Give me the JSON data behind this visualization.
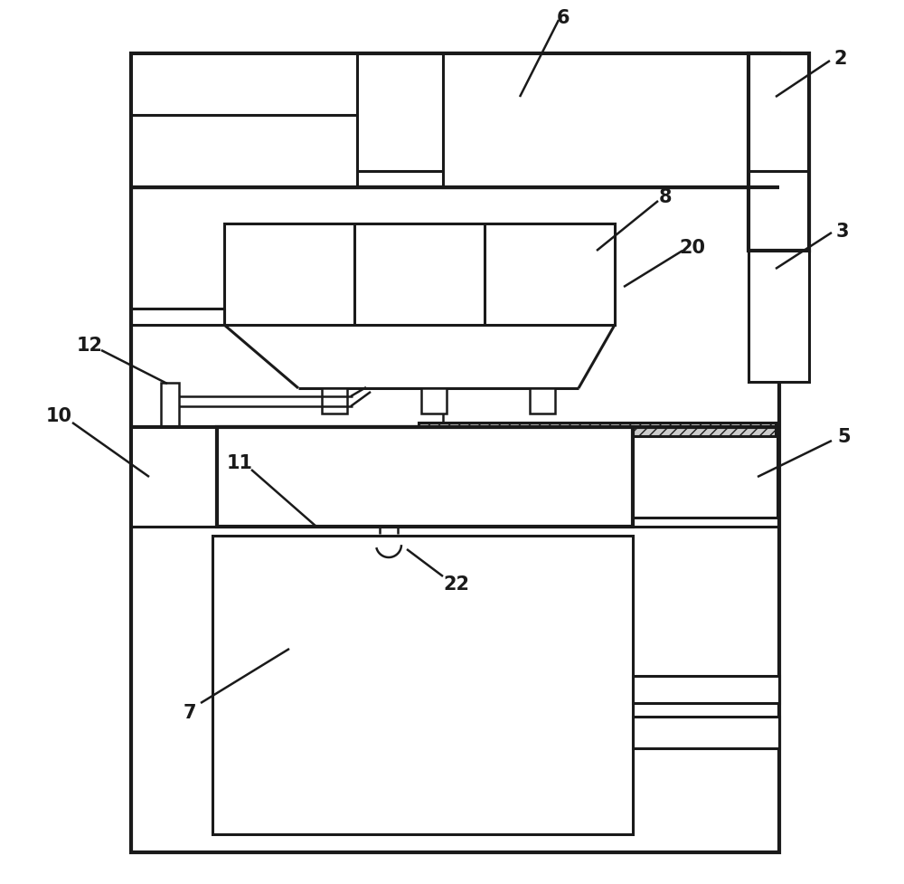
{
  "bg_color": "#ffffff",
  "line_color": "#1a1a1a",
  "lw": 1.8,
  "lw_thick": 3.0,
  "lw_med": 2.2
}
